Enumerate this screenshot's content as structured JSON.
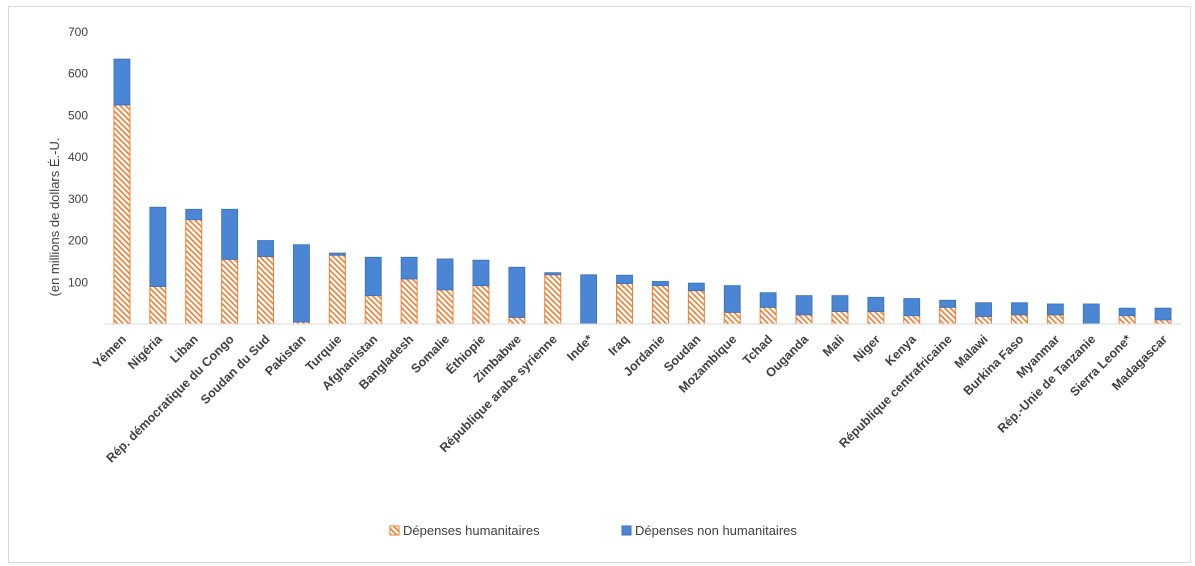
{
  "chart_data": {
    "type": "bar",
    "stacked": true,
    "ylabel": "(en millions de dollars É.-U.",
    "ylim": [
      0,
      700
    ],
    "yticks": [
      0,
      100,
      200,
      300,
      400,
      500,
      600,
      700
    ],
    "yticklabels": [
      "",
      "100",
      "200",
      "300",
      "400",
      "500",
      "600",
      "700"
    ],
    "grid": false,
    "legend_position": "bottom",
    "categories": [
      "Yémen",
      "Nigéria",
      "Liban",
      "Rép. démocratique du Congo",
      "Soudan du Sud",
      "Pakistan",
      "Turquie",
      "Afghanistan",
      "Bangladesh",
      "Somalie",
      "Éthiopie",
      "Zimbabwe",
      "République arabe syrienne",
      "Inde*",
      "Iraq",
      "Jordanie",
      "Soudan",
      "Mozambique",
      "Tchad",
      "Ouganda",
      "Mali",
      "Niger",
      "Kenya",
      "République centrafricaine",
      "Malawi",
      "Burkina Faso",
      "Myanmar",
      "Rép.-Unie de Tanzanie",
      "Sierra Leone*",
      "Madagascar"
    ],
    "series": [
      {
        "name": "Dépenses humanitaires",
        "color": "#ed7d31",
        "pattern": "hatch",
        "values": [
          525,
          90,
          250,
          155,
          162,
          5,
          165,
          68,
          108,
          82,
          92,
          16,
          118,
          0,
          97,
          92,
          80,
          28,
          40,
          22,
          30,
          30,
          20,
          40,
          18,
          22,
          22,
          0,
          20,
          10
        ]
      },
      {
        "name": "Dépenses non humanitaires",
        "color": "#4a86d4",
        "values": [
          110,
          190,
          25,
          120,
          38,
          185,
          5,
          92,
          52,
          74,
          61,
          120,
          5,
          118,
          20,
          10,
          18,
          64,
          35,
          46,
          38,
          34,
          41,
          17,
          33,
          29,
          26,
          48,
          18,
          28
        ]
      }
    ]
  }
}
